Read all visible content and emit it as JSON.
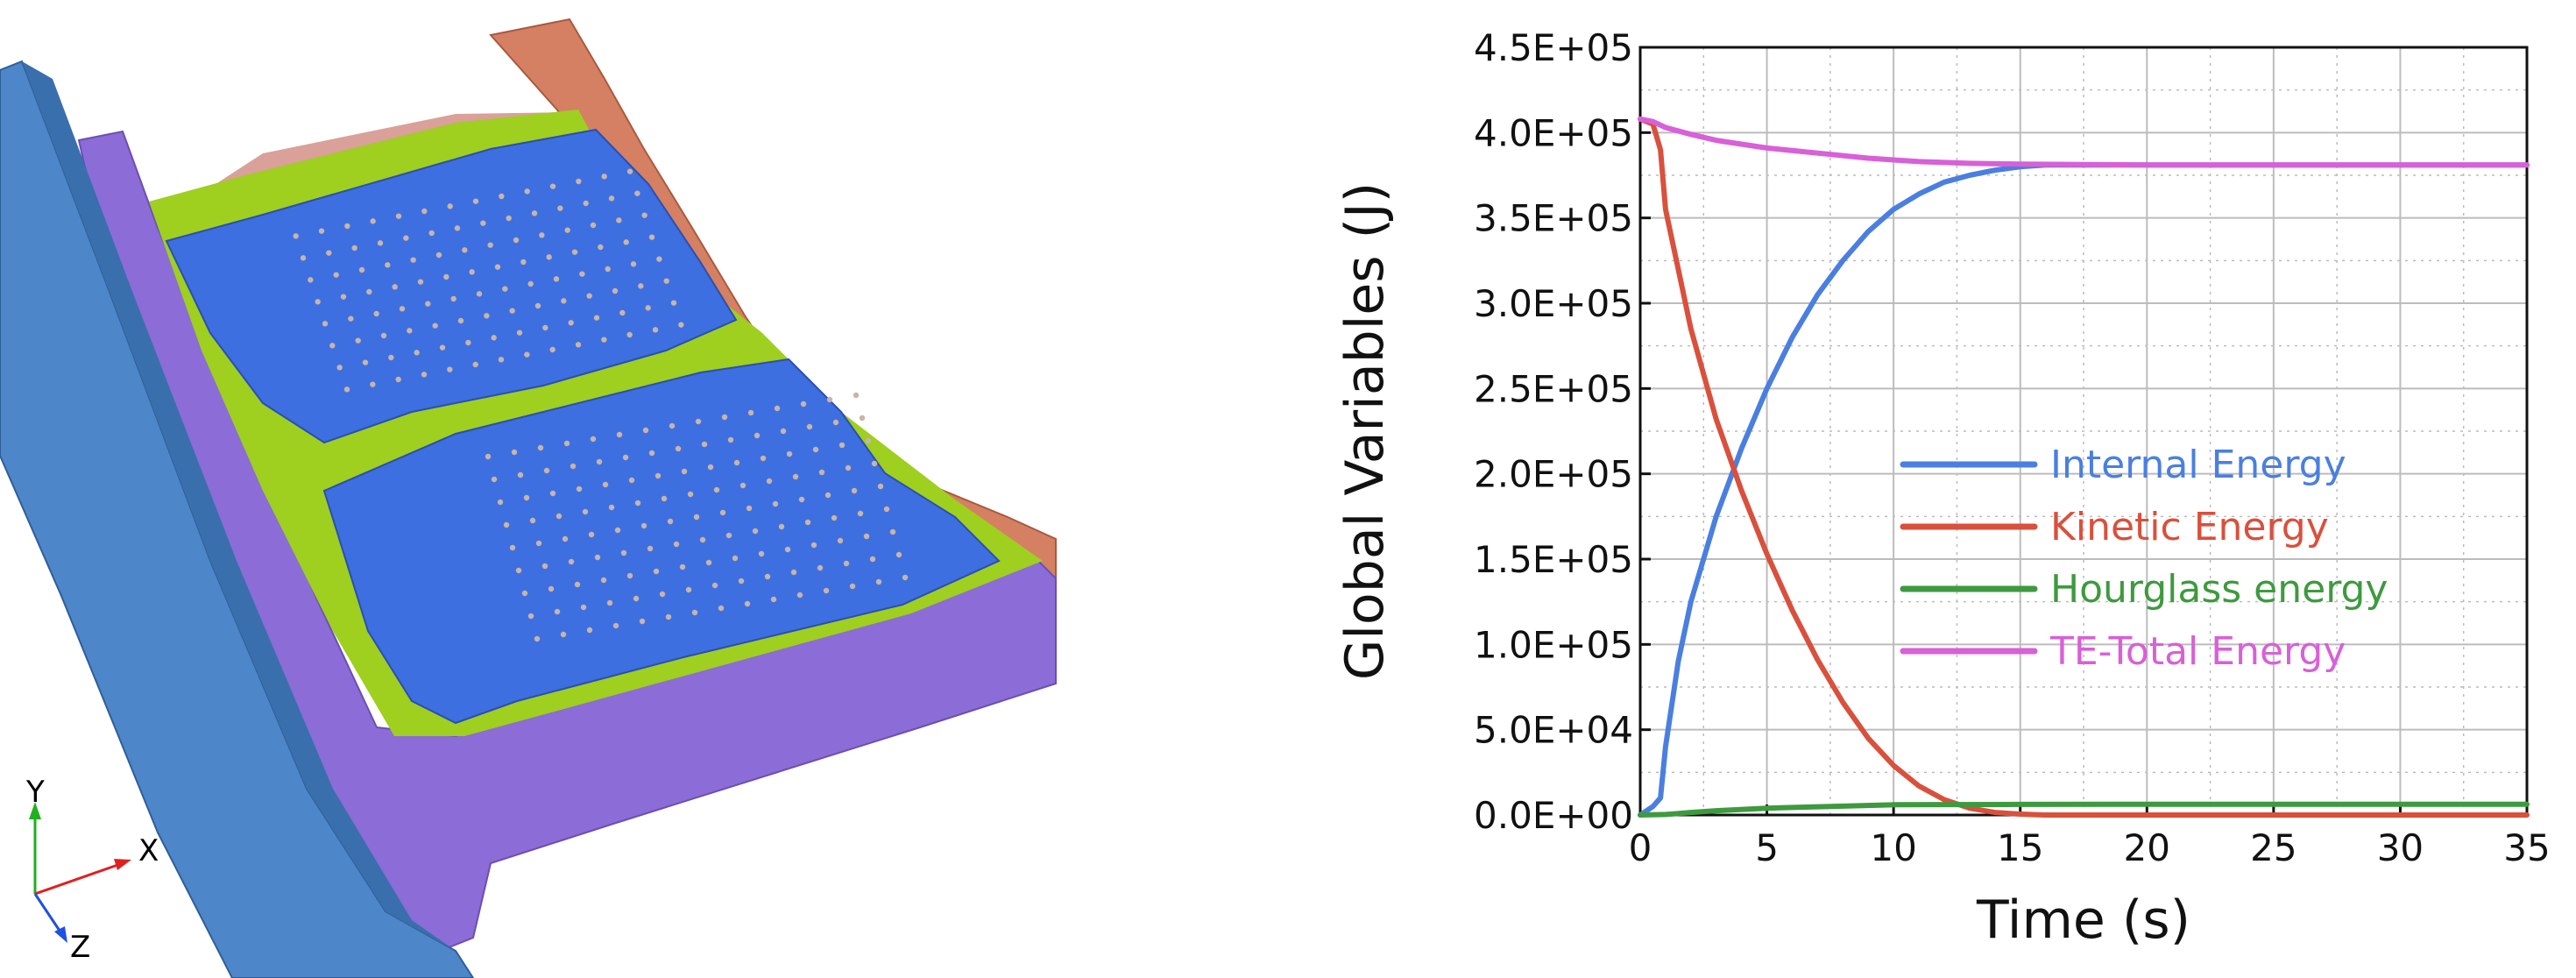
{
  "scene": {
    "triad": {
      "x_label": "X",
      "y_label": "Y",
      "z_label": "Z",
      "x_color": "#e02020",
      "y_color": "#20b020",
      "z_color": "#2050e0"
    },
    "colors": {
      "rail": "#4d86c9",
      "frame": "#8c6cd6",
      "lid": "#3e6fe0",
      "sealant": "#9fcf1f",
      "flange": "#d58062",
      "pink": "#d9a199"
    }
  },
  "chart_data": {
    "type": "line",
    "title": "",
    "xlabel": "Time (s)",
    "ylabel": "Global Variables (J)",
    "xlim": [
      0,
      35
    ],
    "ylim": [
      0,
      450000
    ],
    "xticks": [
      "0",
      "5",
      "10",
      "15",
      "20",
      "25",
      "30",
      "35"
    ],
    "yticks": [
      "0.0E+00",
      "5.0E+04",
      "1.0E+05",
      "1.5E+05",
      "2.0E+05",
      "2.5E+05",
      "3.0E+05",
      "3.5E+05",
      "4.0E+05",
      "4.5E+05"
    ],
    "grid": true,
    "legend_position": "center-right",
    "series": [
      {
        "name": "Internal Energy",
        "color": "#4a7fe0",
        "x": [
          0,
          0.5,
          0.8,
          1,
          1.5,
          2,
          3,
          4,
          5,
          6,
          7,
          8,
          9,
          10,
          11,
          12,
          13,
          14,
          15,
          16,
          18,
          20,
          25,
          30,
          35
        ],
        "y": [
          0,
          5000,
          10000,
          40000,
          90000,
          125000,
          175000,
          215000,
          250000,
          280000,
          305000,
          325000,
          342000,
          355000,
          364000,
          371000,
          375000,
          378000,
          380000,
          381000,
          381000,
          381000,
          381000,
          381000,
          381000
        ]
      },
      {
        "name": "Kinetic Energy",
        "color": "#d9503c",
        "x": [
          0,
          0.5,
          0.8,
          1,
          1.5,
          2,
          3,
          4,
          5,
          6,
          7,
          8,
          9,
          10,
          11,
          12,
          13,
          14,
          15,
          16,
          18,
          20,
          25,
          30,
          35
        ],
        "y": [
          408000,
          405000,
          390000,
          355000,
          320000,
          285000,
          232000,
          190000,
          153000,
          120000,
          91000,
          66000,
          45000,
          29000,
          17000,
          9000,
          4000,
          1500,
          500,
          0,
          0,
          0,
          0,
          0,
          0
        ]
      },
      {
        "name": "Hourglass energy",
        "color": "#3e9a3e",
        "x": [
          0,
          1,
          2,
          3,
          5,
          8,
          10,
          15,
          20,
          25,
          30,
          35
        ],
        "y": [
          0,
          300,
          1500,
          2500,
          4000,
          5200,
          6000,
          6200,
          6300,
          6300,
          6300,
          6300
        ]
      },
      {
        "name": "TE-Total Energy",
        "color": "#d860d8",
        "x": [
          0,
          0.5,
          1,
          2,
          3,
          5,
          7,
          9,
          10,
          11,
          13,
          15,
          20,
          25,
          30,
          35
        ],
        "y": [
          408000,
          406500,
          403000,
          399000,
          395500,
          391000,
          388000,
          385000,
          384000,
          383000,
          382000,
          381500,
          381000,
          381000,
          381000,
          381000
        ]
      }
    ]
  }
}
